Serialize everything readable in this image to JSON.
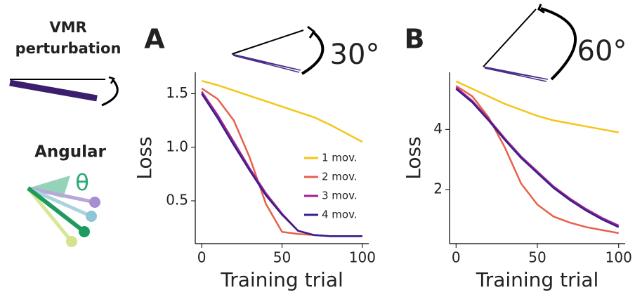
{
  "diagram": {
    "title_lines": [
      "VMR",
      "perturbation"
    ],
    "label": "Angular",
    "symbol": "θ"
  },
  "chart_data": [
    {
      "type": "line",
      "panel": "A",
      "annotation": "30°",
      "xlabel": "Training trial",
      "ylabel": "Loss",
      "x": [
        0,
        10,
        20,
        30,
        40,
        50,
        60,
        70,
        80,
        90,
        100
      ],
      "xlim": [
        -4,
        104
      ],
      "xticks": [
        0,
        50,
        100
      ],
      "ylim": [
        0.1,
        1.7
      ],
      "yticks": [
        0.5,
        {
          "value": 1,
          "label": "1.0"
        },
        1.5
      ],
      "legend": "lower right",
      "series": [
        {
          "name": "1 mov.",
          "color": "#f5c518",
          "values": [
            1.62,
            1.58,
            1.53,
            1.48,
            1.43,
            1.38,
            1.33,
            1.28,
            1.21,
            1.13,
            1.05
          ]
        },
        {
          "name": "2 mov.",
          "color": "#e8604c",
          "values": [
            1.55,
            1.45,
            1.25,
            0.9,
            0.47,
            0.21,
            0.19,
            0.18,
            0.17,
            0.17,
            0.17
          ]
        },
        {
          "name": "3 mov.",
          "color": "#a0208f",
          "values": [
            1.52,
            1.3,
            1.05,
            0.8,
            0.57,
            0.38,
            0.22,
            0.18,
            0.17,
            0.17,
            0.17
          ]
        },
        {
          "name": "4 mov.",
          "color": "#3b1f8a",
          "values": [
            1.5,
            1.27,
            1.02,
            0.78,
            0.55,
            0.37,
            0.22,
            0.18,
            0.17,
            0.17,
            0.17
          ]
        }
      ]
    },
    {
      "type": "line",
      "panel": "B",
      "annotation": "60°",
      "xlabel": "Training trial",
      "ylabel": "Loss",
      "x": [
        0,
        10,
        20,
        30,
        40,
        50,
        60,
        70,
        80,
        90,
        100
      ],
      "xlim": [
        -4,
        104
      ],
      "xticks": [
        0,
        50,
        100
      ],
      "ylim": [
        0.2,
        5.9
      ],
      "yticks": [
        2,
        4
      ],
      "series": [
        {
          "color": "#f5c518",
          "values": [
            5.6,
            5.35,
            5.1,
            4.85,
            4.65,
            4.45,
            4.3,
            4.2,
            4.1,
            4.0,
            3.9
          ]
        },
        {
          "color": "#e8604c",
          "values": [
            5.45,
            5.1,
            4.4,
            3.4,
            2.2,
            1.5,
            1.1,
            0.9,
            0.75,
            0.65,
            0.55
          ]
        },
        {
          "color": "#a0208f",
          "values": [
            5.4,
            4.95,
            4.35,
            3.7,
            3.1,
            2.6,
            2.1,
            1.7,
            1.35,
            1.05,
            0.8
          ]
        },
        {
          "color": "#3b1f8a",
          "values": [
            5.35,
            4.9,
            4.3,
            3.65,
            3.05,
            2.55,
            2.05,
            1.65,
            1.3,
            1.0,
            0.75
          ]
        }
      ]
    }
  ]
}
